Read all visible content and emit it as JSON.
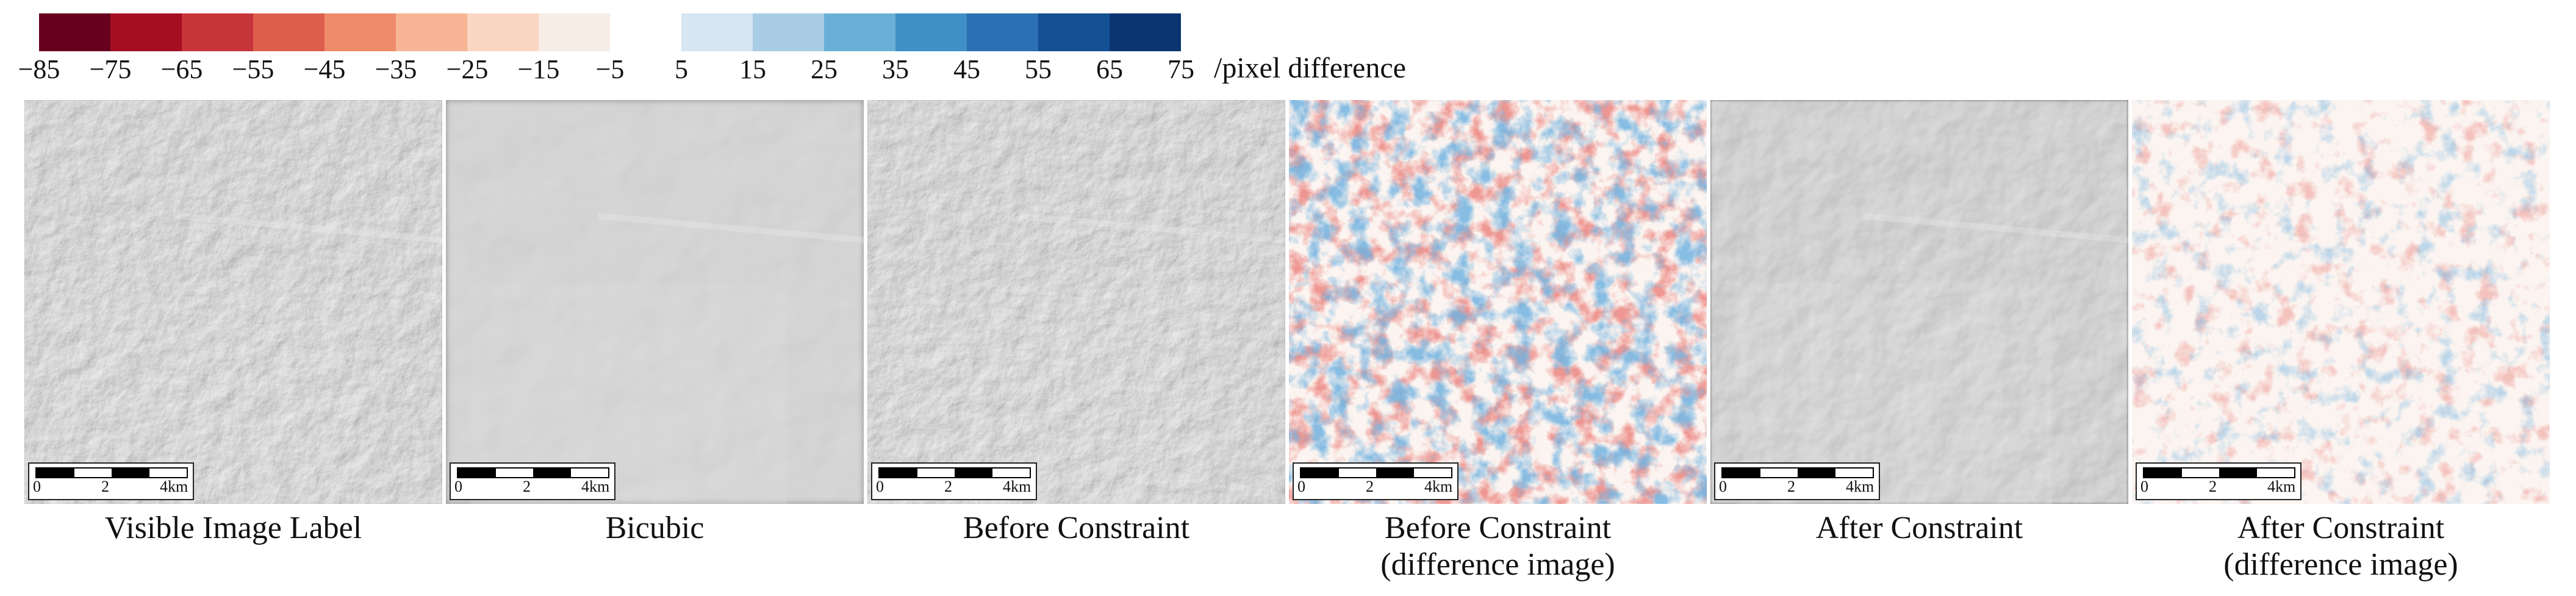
{
  "colorbar": {
    "negative_colors": [
      "#67001f",
      "#a50f23",
      "#c6353a",
      "#de5e4c",
      "#ee8b6a",
      "#f7b595",
      "#fbd6c2",
      "#f7ece6"
    ],
    "positive_colors": [
      "#d6e6f2",
      "#a8cde4",
      "#6ab0d6",
      "#3f90c6",
      "#2b70b3",
      "#134f92",
      "#0a3570"
    ],
    "tick_labels": [
      "−85",
      "−75",
      "−65",
      "−55",
      "−45",
      "−35",
      "−25",
      "−15",
      "−5",
      "5",
      "15",
      "25",
      "35",
      "45",
      "55",
      "65",
      "75"
    ],
    "unit_label": "/pixel difference"
  },
  "scalebar": {
    "label_0": "0",
    "label_2": "2",
    "label_4": "4km"
  },
  "panels": [
    {
      "caption": "Visible Image Label",
      "style": "grayscale-sharp"
    },
    {
      "caption": "Bicubic",
      "style": "grayscale-blurred"
    },
    {
      "caption": "Before Constraint",
      "style": "grayscale-sharp"
    },
    {
      "caption": "Before Constraint\n(difference image)",
      "style": "diverging-strong"
    },
    {
      "caption": "After Constraint",
      "style": "grayscale-smooth"
    },
    {
      "caption": "After Constraint\n(difference image)",
      "style": "diverging-weak"
    }
  ]
}
